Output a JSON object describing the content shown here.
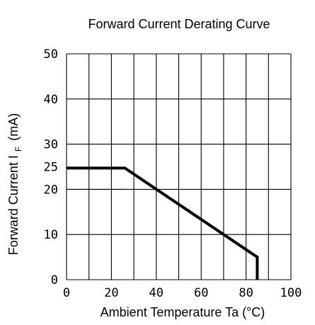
{
  "chart_data": {
    "type": "line",
    "title": "Forward Current Derating Curve",
    "xlabel": "Ambient Temperature Ta (°C)",
    "ylabel": {
      "main": "Forward Current",
      "symbol": "I",
      "subscript": "F",
      "unit": "(mA)"
    },
    "xlim": [
      0,
      100
    ],
    "ylim": [
      0,
      50
    ],
    "x_ticks": [
      0,
      20,
      40,
      60,
      80,
      100
    ],
    "y_ticks": [
      0,
      10,
      20,
      25,
      30,
      40,
      50
    ],
    "x_grid": [
      0,
      10,
      20,
      30,
      40,
      50,
      60,
      70,
      80,
      90,
      100
    ],
    "y_grid": [
      0,
      10,
      20,
      30,
      40,
      50
    ],
    "grid": true,
    "series": [
      {
        "x": [
          0,
          26,
          85,
          85
        ],
        "y": [
          24.7,
          24.7,
          5,
          0
        ],
        "color": "#000000"
      }
    ],
    "annotations": [
      {
        "type": "hline",
        "y": 20,
        "xmax": 26
      }
    ]
  }
}
